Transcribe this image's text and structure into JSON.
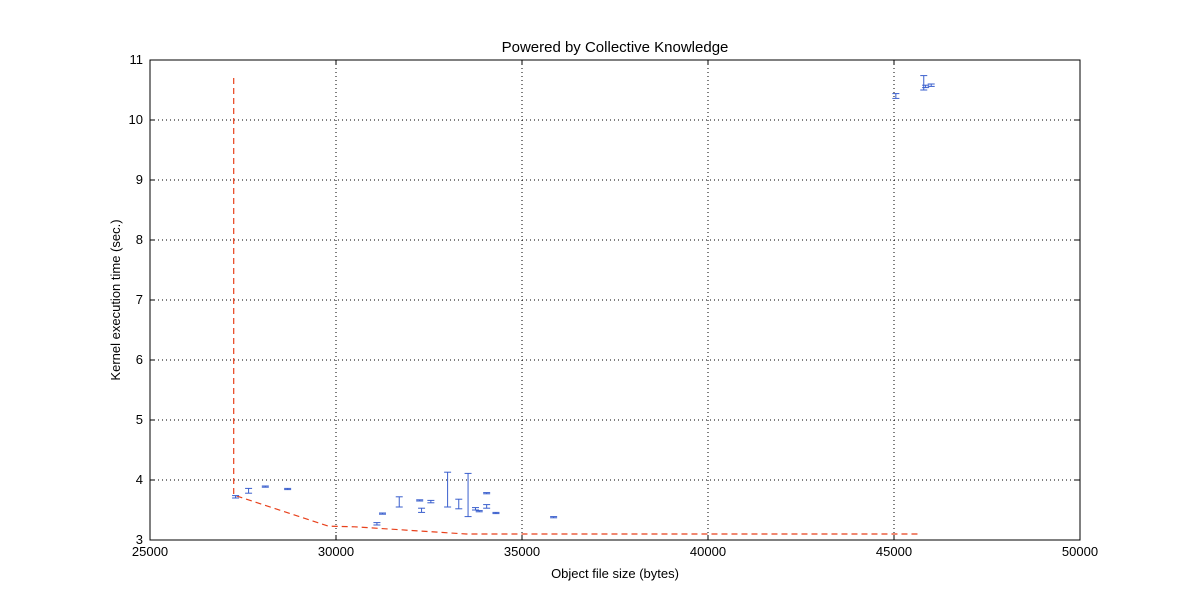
{
  "chart_data": {
    "type": "scatter",
    "title": "Powered by Collective Knowledge",
    "xlabel": "Object file size (bytes)",
    "ylabel": "Kernel execution time (sec.)",
    "xlim": [
      25000,
      50000
    ],
    "ylim": [
      3,
      11
    ],
    "xticks": [
      25000,
      30000,
      35000,
      40000,
      45000,
      50000
    ],
    "yticks": [
      3,
      4,
      5,
      6,
      7,
      8,
      9,
      10,
      11
    ],
    "grid": true,
    "grid_style": "dotted",
    "colors": {
      "points": "#3a5fcd",
      "frontier": "#e8411c"
    },
    "series": [
      {
        "kind": "errorbar",
        "points": [
          {
            "x": 27300,
            "y": 3.72,
            "lo": 3.7,
            "hi": 3.74
          },
          {
            "x": 27650,
            "y": 3.82,
            "lo": 3.78,
            "hi": 3.86
          },
          {
            "x": 28100,
            "y": 3.89,
            "lo": 3.88,
            "hi": 3.9
          },
          {
            "x": 28700,
            "y": 3.85,
            "lo": 3.84,
            "hi": 3.86
          },
          {
            "x": 31100,
            "y": 3.27,
            "lo": 3.25,
            "hi": 3.29
          },
          {
            "x": 31250,
            "y": 3.44,
            "lo": 3.43,
            "hi": 3.45
          },
          {
            "x": 31700,
            "y": 3.63,
            "lo": 3.55,
            "hi": 3.72
          },
          {
            "x": 32250,
            "y": 3.66,
            "lo": 3.65,
            "hi": 3.67
          },
          {
            "x": 32300,
            "y": 3.49,
            "lo": 3.46,
            "hi": 3.53
          },
          {
            "x": 32550,
            "y": 3.64,
            "lo": 3.62,
            "hi": 3.66
          },
          {
            "x": 33000,
            "y": 3.85,
            "lo": 3.55,
            "hi": 4.13
          },
          {
            "x": 33300,
            "y": 3.6,
            "lo": 3.52,
            "hi": 3.68
          },
          {
            "x": 33550,
            "y": 3.75,
            "lo": 3.39,
            "hi": 4.11
          },
          {
            "x": 33750,
            "y": 3.52,
            "lo": 3.5,
            "hi": 3.54
          },
          {
            "x": 33850,
            "y": 3.48,
            "lo": 3.47,
            "hi": 3.49
          },
          {
            "x": 34050,
            "y": 3.56,
            "lo": 3.53,
            "hi": 3.59
          },
          {
            "x": 34050,
            "y": 3.78,
            "lo": 3.77,
            "hi": 3.79
          },
          {
            "x": 34300,
            "y": 3.45,
            "lo": 3.44,
            "hi": 3.46
          },
          {
            "x": 35850,
            "y": 3.38,
            "lo": 3.37,
            "hi": 3.39
          },
          {
            "x": 45050,
            "y": 10.4,
            "lo": 10.36,
            "hi": 10.44
          },
          {
            "x": 45800,
            "y": 10.6,
            "lo": 10.5,
            "hi": 10.74
          },
          {
            "x": 45850,
            "y": 10.56,
            "lo": 10.54,
            "hi": 10.58
          },
          {
            "x": 46000,
            "y": 10.58,
            "lo": 10.56,
            "hi": 10.6
          }
        ]
      },
      {
        "kind": "dashed-line",
        "points": [
          {
            "x": 27250,
            "y": 10.7
          },
          {
            "x": 27250,
            "y": 3.75
          },
          {
            "x": 29800,
            "y": 3.23
          },
          {
            "x": 30500,
            "y": 3.22
          },
          {
            "x": 33500,
            "y": 3.1
          },
          {
            "x": 45700,
            "y": 3.1
          }
        ]
      }
    ]
  }
}
